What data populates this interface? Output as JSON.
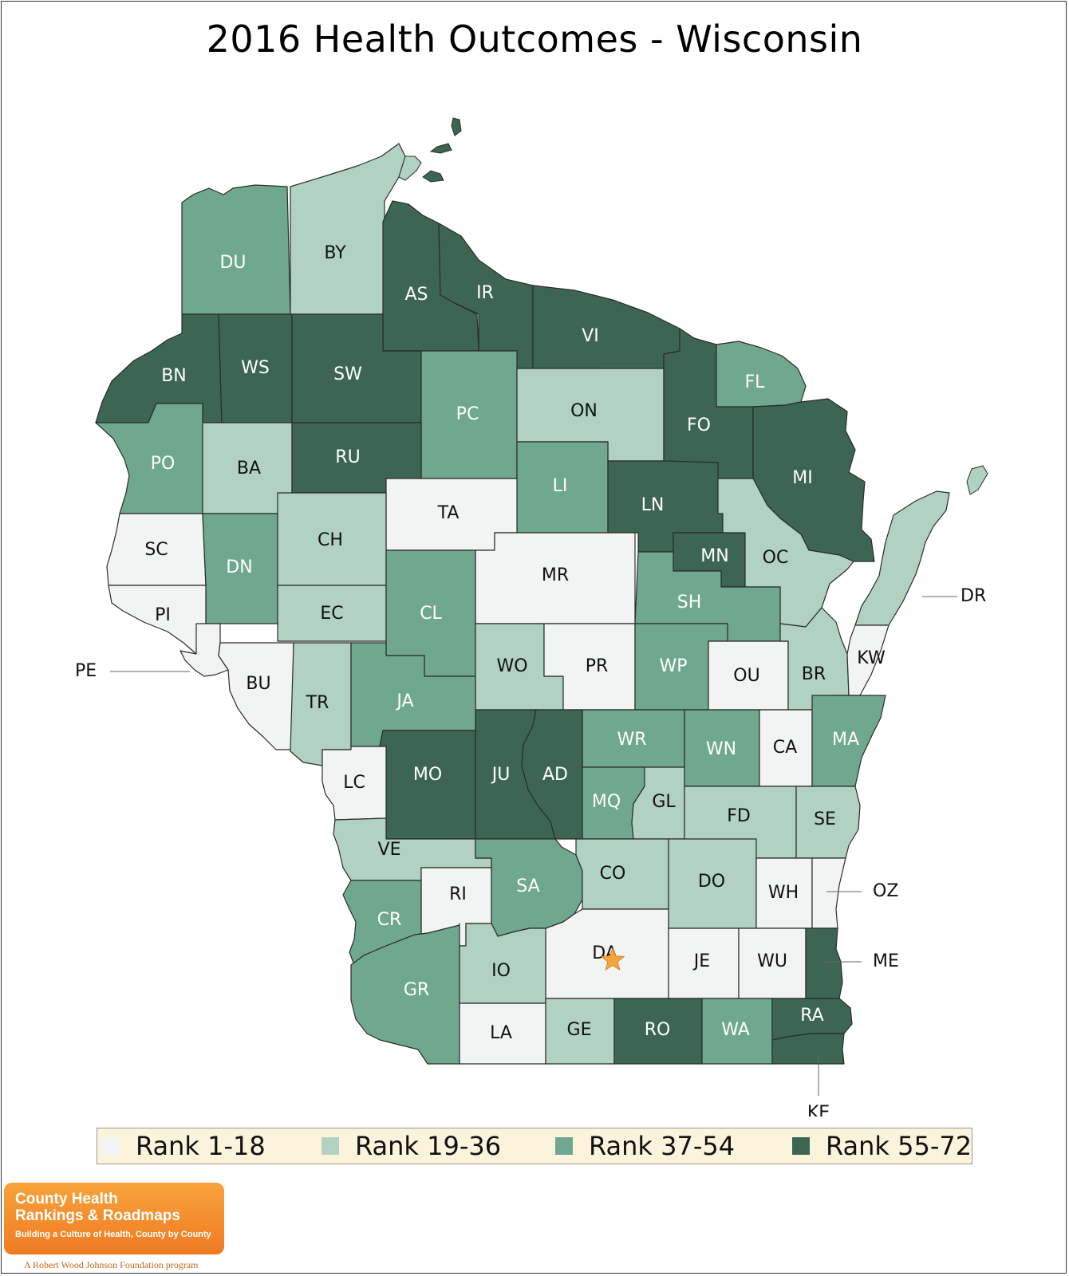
{
  "title": "2016 Health Outcomes - Wisconsin",
  "colors": {
    "rank_1_18": "#f1f4f2",
    "rank_19_36": "#b1d2c2",
    "rank_37_54": "#6fa88e",
    "rank_55_72": "#3c6653",
    "star": "#f7a43c",
    "label_light": "#ffffff",
    "label_dark": "#111111"
  },
  "legend": [
    {
      "label": "Rank 1-18",
      "group": "rank_1_18"
    },
    {
      "label": "Rank 19-36",
      "group": "rank_19_36"
    },
    {
      "label": "Rank 37-54",
      "group": "rank_37_54"
    },
    {
      "label": "Rank 55-72",
      "group": "rank_55_72"
    }
  ],
  "counties": [
    {
      "abbr": "DU",
      "group": "rank_37_54"
    },
    {
      "abbr": "BY",
      "group": "rank_19_36"
    },
    {
      "abbr": "AS",
      "group": "rank_55_72"
    },
    {
      "abbr": "IR",
      "group": "rank_55_72"
    },
    {
      "abbr": "VI",
      "group": "rank_55_72"
    },
    {
      "abbr": "BN",
      "group": "rank_55_72"
    },
    {
      "abbr": "WS",
      "group": "rank_55_72"
    },
    {
      "abbr": "SW",
      "group": "rank_55_72"
    },
    {
      "abbr": "PC",
      "group": "rank_37_54"
    },
    {
      "abbr": "ON",
      "group": "rank_19_36"
    },
    {
      "abbr": "FO",
      "group": "rank_55_72"
    },
    {
      "abbr": "FL",
      "group": "rank_37_54"
    },
    {
      "abbr": "MI",
      "group": "rank_55_72"
    },
    {
      "abbr": "PO",
      "group": "rank_37_54"
    },
    {
      "abbr": "BA",
      "group": "rank_19_36"
    },
    {
      "abbr": "RU",
      "group": "rank_55_72"
    },
    {
      "abbr": "LI",
      "group": "rank_37_54"
    },
    {
      "abbr": "LN",
      "group": "rank_55_72"
    },
    {
      "abbr": "TA",
      "group": "rank_1_18"
    },
    {
      "abbr": "SC",
      "group": "rank_1_18"
    },
    {
      "abbr": "DN",
      "group": "rank_37_54"
    },
    {
      "abbr": "CH",
      "group": "rank_19_36"
    },
    {
      "abbr": "MR",
      "group": "rank_1_18"
    },
    {
      "abbr": "MN",
      "group": "rank_55_72"
    },
    {
      "abbr": "OC",
      "group": "rank_19_36"
    },
    {
      "abbr": "PI",
      "group": "rank_1_18"
    },
    {
      "abbr": "EC",
      "group": "rank_19_36"
    },
    {
      "abbr": "CL",
      "group": "rank_37_54"
    },
    {
      "abbr": "SH",
      "group": "rank_37_54"
    },
    {
      "abbr": "DR",
      "group": "rank_19_36"
    },
    {
      "abbr": "WO",
      "group": "rank_19_36"
    },
    {
      "abbr": "PR",
      "group": "rank_1_18"
    },
    {
      "abbr": "WP",
      "group": "rank_37_54"
    },
    {
      "abbr": "OU",
      "group": "rank_1_18"
    },
    {
      "abbr": "BR",
      "group": "rank_19_36"
    },
    {
      "abbr": "KW",
      "group": "rank_1_18"
    },
    {
      "abbr": "PE",
      "group": "rank_1_18"
    },
    {
      "abbr": "BU",
      "group": "rank_1_18"
    },
    {
      "abbr": "TR",
      "group": "rank_19_36"
    },
    {
      "abbr": "JA",
      "group": "rank_37_54"
    },
    {
      "abbr": "WR",
      "group": "rank_37_54"
    },
    {
      "abbr": "WN",
      "group": "rank_37_54"
    },
    {
      "abbr": "CA",
      "group": "rank_1_18"
    },
    {
      "abbr": "MA",
      "group": "rank_37_54"
    },
    {
      "abbr": "MO",
      "group": "rank_55_72"
    },
    {
      "abbr": "JU",
      "group": "rank_55_72"
    },
    {
      "abbr": "AD",
      "group": "rank_55_72"
    },
    {
      "abbr": "LC",
      "group": "rank_1_18"
    },
    {
      "abbr": "MQ",
      "group": "rank_37_54"
    },
    {
      "abbr": "GL",
      "group": "rank_19_36"
    },
    {
      "abbr": "FD",
      "group": "rank_19_36"
    },
    {
      "abbr": "SE",
      "group": "rank_19_36"
    },
    {
      "abbr": "VE",
      "group": "rank_19_36"
    },
    {
      "abbr": "RI",
      "group": "rank_1_18"
    },
    {
      "abbr": "SA",
      "group": "rank_37_54"
    },
    {
      "abbr": "CO",
      "group": "rank_19_36"
    },
    {
      "abbr": "DO",
      "group": "rank_19_36"
    },
    {
      "abbr": "WH",
      "group": "rank_1_18"
    },
    {
      "abbr": "OZ",
      "group": "rank_1_18"
    },
    {
      "abbr": "CR",
      "group": "rank_37_54"
    },
    {
      "abbr": "DA",
      "group": "rank_1_18"
    },
    {
      "abbr": "IO",
      "group": "rank_19_36"
    },
    {
      "abbr": "JE",
      "group": "rank_1_18"
    },
    {
      "abbr": "WU",
      "group": "rank_1_18"
    },
    {
      "abbr": "ME",
      "group": "rank_55_72"
    },
    {
      "abbr": "GR",
      "group": "rank_37_54"
    },
    {
      "abbr": "LA",
      "group": "rank_1_18"
    },
    {
      "abbr": "GE",
      "group": "rank_19_36"
    },
    {
      "abbr": "RO",
      "group": "rank_55_72"
    },
    {
      "abbr": "WA",
      "group": "rank_37_54"
    },
    {
      "abbr": "RA",
      "group": "rank_55_72"
    },
    {
      "abbr": "KE",
      "group": "rank_55_72"
    }
  ],
  "capital_marker": {
    "county": "DA",
    "icon": "star-icon"
  },
  "logo": {
    "line1": "County Health",
    "line2": "Rankings & Roadmaps",
    "tagline": "Building a Culture of Health, County by County",
    "program": "A Robert Wood Johnson Foundation program"
  }
}
